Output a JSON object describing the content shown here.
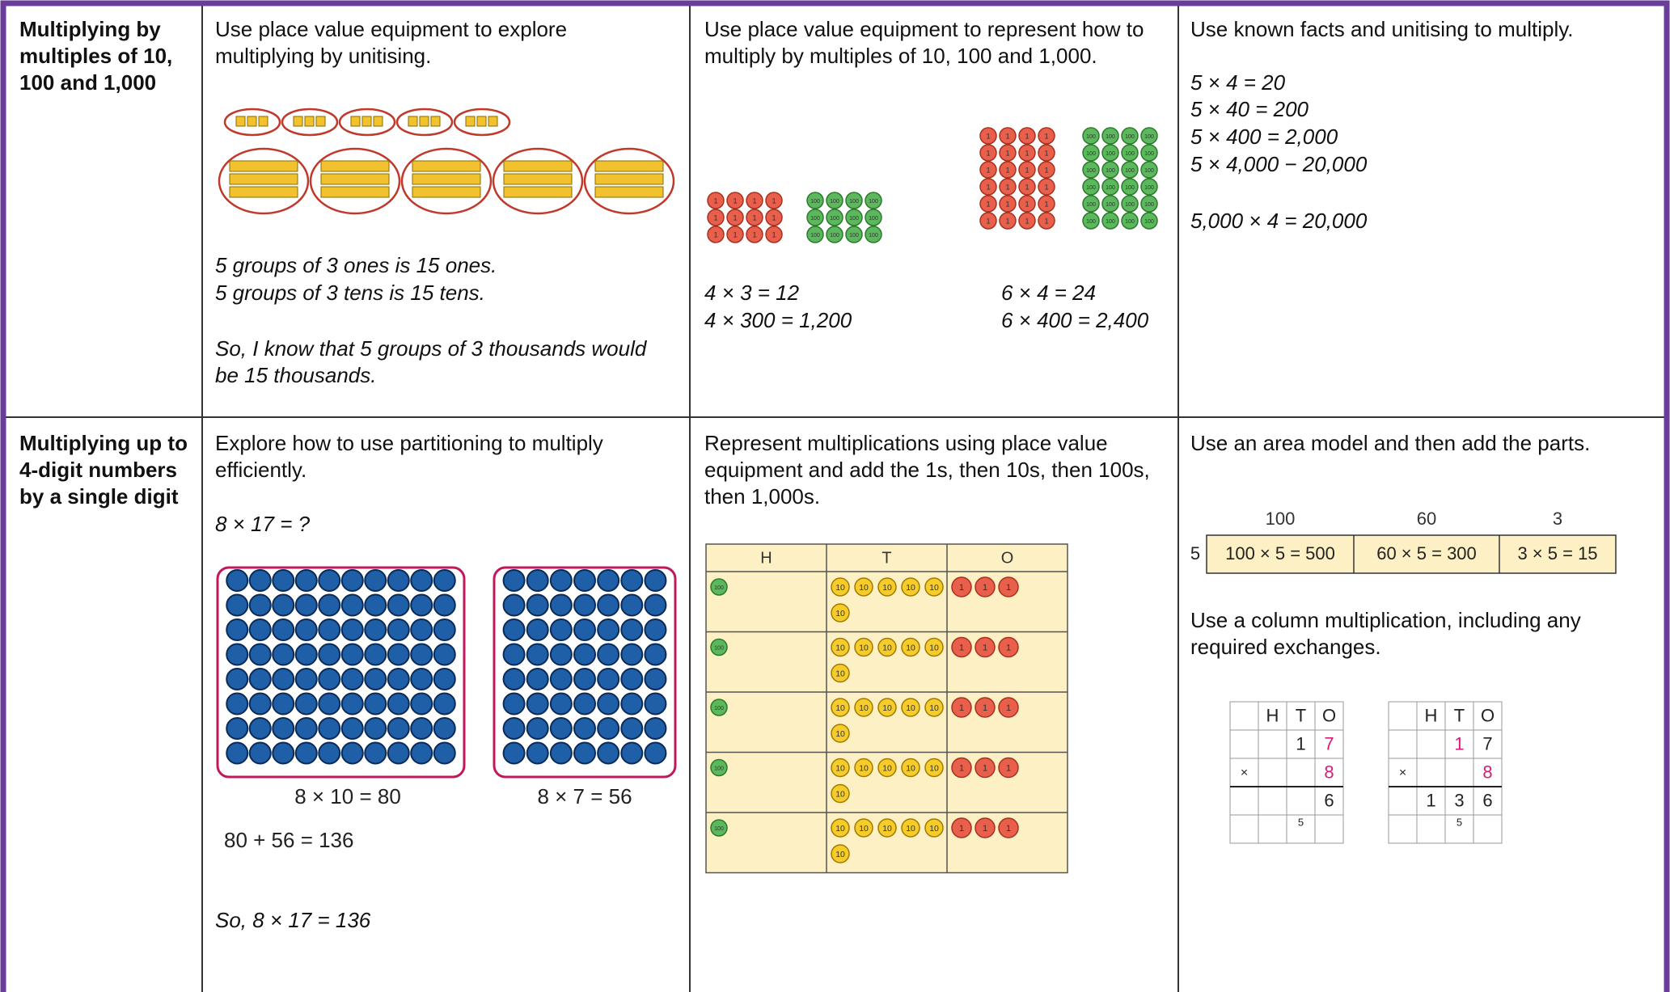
{
  "table": {
    "rows": [
      {
        "heading": "Multiplying by multiples of 10, 100 and 1,000",
        "cells": [
          {
            "intro": "Use place value equipment to explore multiplying by unitising.",
            "lines": [
              "5 groups of 3 ones is 15 ones.",
              "5 groups of 3 tens is 15 tens."
            ],
            "conclusion": "So, I know that 5 groups of 3 thousands would be 15 thousands."
          },
          {
            "intro": "Use place value equipment to represent how to multiply by multiples of 10, 100 and 1,000.",
            "counter_labels": [
              "1",
              "100"
            ],
            "left": [
              "4 × 3 = 12",
              "4 × 300 = 1,200"
            ],
            "right": [
              "6 × 4 = 24",
              "6 × 400 = 2,400"
            ]
          },
          {
            "intro": "Use known facts and unitising to multiply.",
            "facts": [
              "5 × 4 = 20",
              "5 × 40 = 200",
              "5 × 400 = 2,000",
              "5 × 4,000 − 20,000"
            ],
            "extra": "5,000 × 4 = 20,000"
          }
        ]
      },
      {
        "heading": "Multiplying up to 4-digit numbers by a single digit",
        "cells": [
          {
            "intro": "Explore how to use partitioning to multiply efficiently.",
            "question": "8 × 17 = ?",
            "captions": [
              "8 × 10 = 80",
              "8 × 7 = 56"
            ],
            "sum": "80 + 56 = 136",
            "conclusion": "So, 8 × 17 = 136"
          },
          {
            "intro": "Represent multiplications using place value equipment and add the 1s, then 10s, then 100s, then 1,000s.",
            "columns": [
              "H",
              "T",
              "O"
            ],
            "counter_labels": [
              "100",
              "10",
              "1"
            ]
          },
          {
            "intro": "Use an area model and then add the parts.",
            "area_headers": [
              "100",
              "60",
              "3"
            ],
            "area_multiplier": "5",
            "area_cells": [
              "100 × 5 = 500",
              "60 × 5 = 300",
              "3 × 5 = 15"
            ],
            "intro2": "Use a column multiplication, including any required exchanges.",
            "grids": [
              [
                [
                  null,
                  "H",
                  "T",
                  "O"
                ],
                [
                  null,
                  null,
                  "1",
                  "7"
                ],
                [
                  "×",
                  null,
                  null,
                  "8"
                ],
                [
                  null,
                  null,
                  null,
                  "6"
                ],
                [
                  null,
                  null,
                  "5",
                  null
                ]
              ],
              [
                [
                  null,
                  "H",
                  "T",
                  "O"
                ],
                [
                  null,
                  null,
                  "1",
                  "7"
                ],
                [
                  "×",
                  null,
                  null,
                  "8"
                ],
                [
                  null,
                  "1",
                  "3",
                  "6"
                ],
                [
                  null,
                  null,
                  "5",
                  null
                ]
              ]
            ]
          }
        ]
      }
    ]
  }
}
